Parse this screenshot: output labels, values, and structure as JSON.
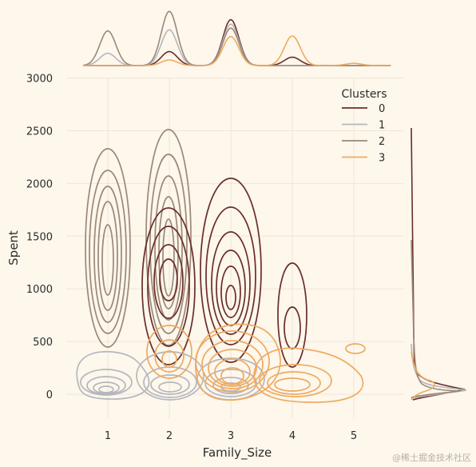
{
  "chart_data": {
    "type": "kde-jointplot",
    "xlabel": "Family_Size",
    "ylabel": "Spent",
    "x_ticks": [
      "1",
      "2",
      "3",
      "4",
      "5"
    ],
    "y_ticks": [
      "0",
      "500",
      "1000",
      "1500",
      "2000",
      "2500",
      "3000"
    ],
    "xlim": [
      0.4,
      5.6
    ],
    "ylim": [
      -230,
      3000
    ],
    "legend_title": "Clusters",
    "legend_position": "top-right",
    "series": [
      {
        "name": "0",
        "color": "#6b2d2a",
        "clusters": [
          [
            2,
            1000,
            0.18,
            1500
          ],
          [
            3,
            800,
            0.25,
            1300
          ],
          [
            4,
            700,
            0.2,
            700
          ]
        ],
        "marginal_x": [
          0,
          0.25,
          0.82,
          0.15,
          0
        ]
      },
      {
        "name": "1",
        "color": "#b5b7bf",
        "clusters": [
          [
            1,
            40,
            0.5,
            80
          ],
          [
            2,
            60,
            0.5,
            90
          ],
          [
            3,
            50,
            0.5,
            80
          ]
        ],
        "marginal_x": [
          0.22,
          0.64,
          0.74,
          0,
          0
        ]
      },
      {
        "name": "2",
        "color": "#9c8878",
        "clusters": [
          [
            1,
            1300,
            0.2,
            1250
          ],
          [
            2,
            1300,
            0.2,
            1300
          ]
        ],
        "marginal_x": [
          0.62,
          0.97,
          0.67,
          0,
          0
        ]
      },
      {
        "name": "3",
        "color": "#eeaa60",
        "clusters": [
          [
            2,
            250,
            0.25,
            400
          ],
          [
            3,
            200,
            0.4,
            400
          ],
          [
            4,
            90,
            0.5,
            150
          ]
        ],
        "marginal_x": [
          0,
          0.1,
          0.52,
          0.53,
          0.04
        ]
      }
    ]
  },
  "watermark": "@稀土掘金技术社区"
}
